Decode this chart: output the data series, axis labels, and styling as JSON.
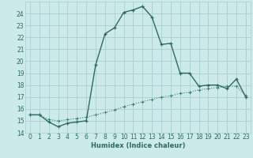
{
  "xlabel": "Humidex (Indice chaleur)",
  "bg_color": "#cdeaea",
  "grid_color": "#aacfcf",
  "line_color": "#2d6b5e",
  "line2_color": "#3d8070",
  "x_main": [
    0,
    1,
    2,
    3,
    4,
    5,
    6,
    7,
    8,
    9,
    10,
    11,
    12,
    13,
    14,
    15,
    16,
    17,
    18,
    19,
    20,
    21,
    22,
    23
  ],
  "y_main": [
    15.5,
    15.5,
    14.9,
    14.5,
    14.8,
    14.9,
    15.0,
    19.7,
    22.3,
    22.8,
    24.1,
    24.3,
    24.6,
    23.7,
    21.4,
    21.5,
    19.0,
    19.0,
    17.9,
    18.0,
    18.0,
    17.7,
    18.5,
    17.0
  ],
  "x_line2": [
    0,
    1,
    2,
    3,
    4,
    5,
    6,
    7,
    8,
    9,
    10,
    11,
    12,
    13,
    14,
    15,
    16,
    17,
    18,
    19,
    20,
    21,
    22,
    23
  ],
  "y_line2": [
    15.5,
    15.5,
    15.1,
    15.0,
    15.1,
    15.2,
    15.3,
    15.5,
    15.7,
    15.9,
    16.2,
    16.4,
    16.6,
    16.8,
    17.0,
    17.1,
    17.3,
    17.4,
    17.6,
    17.7,
    17.8,
    17.9,
    17.9,
    17.1
  ],
  "ylim": [
    14,
    25
  ],
  "xlim": [
    -0.5,
    23.5
  ],
  "yticks": [
    14,
    15,
    16,
    17,
    18,
    19,
    20,
    21,
    22,
    23,
    24
  ],
  "xticks": [
    0,
    1,
    2,
    3,
    4,
    5,
    6,
    7,
    8,
    9,
    10,
    11,
    12,
    13,
    14,
    15,
    16,
    17,
    18,
    19,
    20,
    21,
    22,
    23
  ],
  "xlabel_fontsize": 6.0,
  "tick_fontsize": 5.5,
  "linewidth_main": 1.0,
  "linewidth2": 0.8
}
